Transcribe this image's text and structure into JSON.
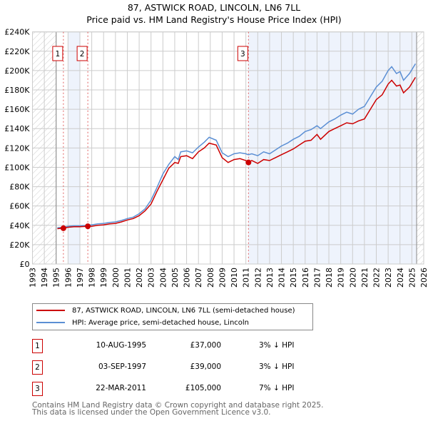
{
  "chart_data": {
    "type": "line",
    "title": "87, ASTWICK ROAD, LINCOLN, LN6 7LL",
    "subtitle": "Price paid vs. HM Land Registry's House Price Index (HPI)",
    "xlim": [
      1993,
      2026
    ],
    "ylim": [
      0,
      240000
    ],
    "x_ticks": [
      "1993",
      "1994",
      "1995",
      "1996",
      "1997",
      "1998",
      "1999",
      "2000",
      "2001",
      "2002",
      "2003",
      "2004",
      "2005",
      "2006",
      "2007",
      "2008",
      "2009",
      "2010",
      "2011",
      "2012",
      "2013",
      "2014",
      "2015",
      "2016",
      "2017",
      "2018",
      "2019",
      "2020",
      "2021",
      "2022",
      "2023",
      "2024",
      "2025",
      "2026"
    ],
    "y_ticks": [
      {
        "v": 0,
        "label": "£0"
      },
      {
        "v": 20000,
        "label": "£20K"
      },
      {
        "v": 40000,
        "label": "£40K"
      },
      {
        "v": 60000,
        "label": "£60K"
      },
      {
        "v": 80000,
        "label": "£80K"
      },
      {
        "v": 100000,
        "label": "£100K"
      },
      {
        "v": 120000,
        "label": "£120K"
      },
      {
        "v": 140000,
        "label": "£140K"
      },
      {
        "v": 160000,
        "label": "£160K"
      },
      {
        "v": 180000,
        "label": "£180K"
      },
      {
        "v": 200000,
        "label": "£200K"
      },
      {
        "v": 220000,
        "label": "£220K"
      },
      {
        "v": 240000,
        "label": "£240K"
      }
    ],
    "grid": true,
    "hatched_ranges": [
      [
        1993,
        1995.0
      ],
      [
        2025.4,
        2026
      ]
    ],
    "shaded_ranges": [
      [
        1996.0,
        1997.0
      ],
      [
        2011.2,
        2025.4
      ]
    ],
    "series": [
      {
        "name": "87, ASTWICK ROAD, LINCOLN, LN6 7LL (semi-detached house)",
        "color": "#cc0000",
        "x": [
          1995.1,
          1995.6,
          1996,
          1996.5,
          1997,
          1997.7,
          1998,
          1998.5,
          1999,
          1999.5,
          2000,
          2000.5,
          2001,
          2001.5,
          2002,
          2002.5,
          2003,
          2003.5,
          2004,
          2004.5,
          2005,
          2005.3,
          2005.5,
          2006,
          2006.5,
          2007,
          2007.5,
          2007.9,
          2008.5,
          2009,
          2009.5,
          2010,
          2010.5,
          2011,
          2011.2,
          2011.5,
          2012,
          2012.5,
          2013,
          2013.5,
          2014,
          2014.5,
          2015,
          2015.5,
          2016,
          2016.5,
          2017,
          2017.3,
          2018,
          2018.5,
          2019,
          2019.5,
          2020,
          2020.5,
          2021,
          2021.5,
          2022,
          2022.5,
          2023,
          2023.3,
          2023.7,
          2024,
          2024.3,
          2024.8,
          2025.3
        ],
        "y": [
          36500,
          37000,
          38000,
          38500,
          38500,
          39000,
          39000,
          40000,
          40500,
          41500,
          42000,
          43500,
          45500,
          47000,
          50000,
          55000,
          62000,
          75000,
          87000,
          99000,
          105000,
          104000,
          111000,
          112000,
          109000,
          116000,
          120000,
          125000,
          123000,
          110000,
          105000,
          108000,
          109000,
          107000,
          105000,
          107000,
          104000,
          108000,
          107000,
          110000,
          113000,
          116000,
          119000,
          123000,
          127000,
          128000,
          134000,
          129000,
          137000,
          140000,
          143000,
          146000,
          145000,
          148000,
          150000,
          160000,
          170000,
          175000,
          186000,
          190000,
          184000,
          185000,
          177000,
          183000,
          193000
        ]
      },
      {
        "name": "HPI: Average price, semi-detached house, Lincoln",
        "color": "#5b8fd4",
        "x": [
          1995.1,
          1995.6,
          1996,
          1996.5,
          1997,
          1997.7,
          1998,
          1998.5,
          1999,
          1999.5,
          2000,
          2000.5,
          2001,
          2001.5,
          2002,
          2002.5,
          2003,
          2003.5,
          2004,
          2004.5,
          2005,
          2005.3,
          2005.5,
          2006,
          2006.5,
          2007,
          2007.5,
          2007.9,
          2008.5,
          2009,
          2009.5,
          2010,
          2010.5,
          2011,
          2011.2,
          2011.5,
          2012,
          2012.5,
          2013,
          2013.5,
          2014,
          2014.5,
          2015,
          2015.5,
          2016,
          2016.5,
          2017,
          2017.3,
          2018,
          2018.5,
          2019,
          2019.5,
          2020,
          2020.5,
          2021,
          2021.5,
          2022,
          2022.5,
          2023,
          2023.3,
          2023.7,
          2024,
          2024.3,
          2024.8,
          2025.3
        ],
        "y": [
          37500,
          38000,
          39000,
          39500,
          39500,
          40000,
          40500,
          41500,
          42000,
          43000,
          43500,
          45000,
          47000,
          48500,
          52000,
          57000,
          66000,
          79000,
          93000,
          103000,
          111000,
          108000,
          116000,
          117000,
          115000,
          121000,
          126000,
          131000,
          128000,
          115000,
          111000,
          114000,
          115000,
          114000,
          113000,
          114000,
          112000,
          116000,
          114000,
          118000,
          122000,
          125000,
          129000,
          132000,
          137000,
          139000,
          143000,
          140000,
          147000,
          150000,
          154000,
          157000,
          155000,
          160000,
          163000,
          173000,
          183000,
          189000,
          200000,
          204000,
          197000,
          199000,
          190000,
          197000,
          207000
        ]
      }
    ],
    "sales": [
      {
        "n": "1",
        "x": 1995.61,
        "y": 37000
      },
      {
        "n": "2",
        "x": 1997.67,
        "y": 39000
      },
      {
        "n": "3",
        "x": 2011.22,
        "y": 105000
      }
    ]
  },
  "header": {
    "title": "87, ASTWICK ROAD, LINCOLN, LN6 7LL",
    "subtitle": "Price paid vs. HM Land Registry's House Price Index (HPI)"
  },
  "legend": {
    "property": "87, ASTWICK ROAD, LINCOLN, LN6 7LL (semi-detached house)",
    "hpi": "HPI: Average price, semi-detached house, Lincoln"
  },
  "transactions": [
    {
      "n": "1",
      "date": "10-AUG-1995",
      "price": "£37,000",
      "hpi": "3% ↓ HPI"
    },
    {
      "n": "2",
      "date": "03-SEP-1997",
      "price": "£39,000",
      "hpi": "3% ↓ HPI"
    },
    {
      "n": "3",
      "date": "22-MAR-2011",
      "price": "£105,000",
      "hpi": "7% ↓ HPI"
    }
  ],
  "footer": {
    "line1": "Contains HM Land Registry data © Crown copyright and database right 2025.",
    "line2": "This data is licensed under the Open Government Licence v3.0."
  }
}
